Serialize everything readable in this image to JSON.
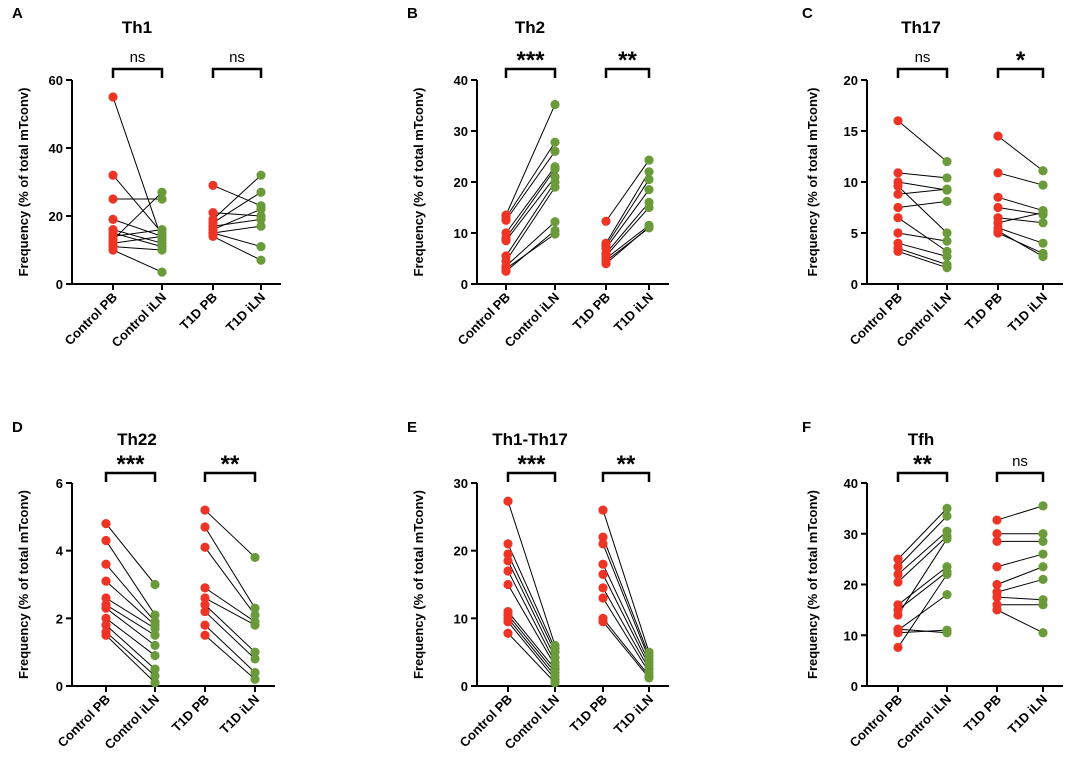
{
  "colors": {
    "pb": "#ee3424",
    "iln": "#6a9a3a",
    "axis": "#000000"
  },
  "chart_data": [
    {
      "type": "scatter",
      "panel": "A",
      "title": "Th1",
      "ylabel": "Frequency  (% of total mTconv)",
      "ylim": [
        0,
        60
      ],
      "yticks": [
        0,
        20,
        40,
        60
      ],
      "categories": [
        "Control PB",
        "Control iLN",
        "T1D PB",
        "T1D iLN"
      ],
      "significance": [
        "ns",
        "ns"
      ],
      "groups": [
        {
          "pairs": [
            [
              55,
              13
            ],
            [
              32,
              15
            ],
            [
              25,
              25
            ],
            [
              19,
              14
            ],
            [
              16,
              12
            ],
            [
              15,
              11
            ],
            [
              14,
              16
            ],
            [
              13,
              27
            ],
            [
              12,
              14
            ],
            [
              11,
              10
            ],
            [
              10,
              3.5
            ]
          ]
        },
        {
          "pairs": [
            [
              29,
              23
            ],
            [
              21,
              20
            ],
            [
              19,
              32
            ],
            [
              18,
              27
            ],
            [
              17,
              19
            ],
            [
              16,
              22
            ],
            [
              15,
              11
            ],
            [
              14,
              7
            ],
            [
              15,
              17
            ]
          ]
        }
      ]
    },
    {
      "type": "scatter",
      "panel": "B",
      "title": "Th2",
      "ylabel": "Frequency  (% of total mTconv)",
      "ylim": [
        0,
        40
      ],
      "yticks": [
        0,
        10,
        20,
        30,
        40
      ],
      "categories": [
        "Control PB",
        "Control iLN",
        "T1D PB",
        "T1D iLN"
      ],
      "significance": [
        "***",
        "**"
      ],
      "groups": [
        {
          "pairs": [
            [
              13.5,
              35.2
            ],
            [
              13,
              27.8
            ],
            [
              12.5,
              26
            ],
            [
              10,
              23
            ],
            [
              9,
              22.5
            ],
            [
              8.5,
              21
            ],
            [
              5.5,
              20
            ],
            [
              4.5,
              19
            ],
            [
              3.5,
              12.2
            ],
            [
              2.5,
              10.5
            ],
            [
              3,
              9.8
            ]
          ]
        },
        {
          "pairs": [
            [
              12.3,
              24.3
            ],
            [
              8,
              22
            ],
            [
              7.5,
              20.5
            ],
            [
              7,
              18.5
            ],
            [
              6,
              16
            ],
            [
              5.5,
              15
            ],
            [
              5,
              11.5
            ],
            [
              4.5,
              11
            ],
            [
              4,
              11.2
            ]
          ]
        }
      ]
    },
    {
      "type": "scatter",
      "panel": "C",
      "title": "Th17",
      "ylabel": "Frequency  (% of total mTconv)",
      "ylim": [
        0,
        20
      ],
      "yticks": [
        0,
        5,
        10,
        15,
        20
      ],
      "categories": [
        "Control PB",
        "Control iLN",
        "T1D PB",
        "T1D iLN"
      ],
      "significance": [
        "ns",
        "*"
      ],
      "groups": [
        {
          "pairs": [
            [
              16,
              12
            ],
            [
              10.9,
              10.4
            ],
            [
              10,
              9.2
            ],
            [
              9.6,
              5
            ],
            [
              8.8,
              9.3
            ],
            [
              7.5,
              8.1
            ],
            [
              6.5,
              3.2
            ],
            [
              5,
              4.2
            ],
            [
              4,
              2.7
            ],
            [
              3.5,
              1.9
            ],
            [
              3.2,
              1.6
            ]
          ]
        },
        {
          "pairs": [
            [
              14.5,
              11.1
            ],
            [
              10.9,
              9.7
            ],
            [
              8.5,
              7.2
            ],
            [
              7.5,
              6.8
            ],
            [
              6.5,
              6
            ],
            [
              6,
              7
            ],
            [
              5.5,
              4
            ],
            [
              5,
              3
            ],
            [
              5.2,
              2.7
            ]
          ]
        }
      ]
    },
    {
      "type": "scatter",
      "panel": "D",
      "title": "Th22",
      "ylabel": "Frequency  (% of total mTconv)",
      "ylim": [
        0,
        6
      ],
      "yticks": [
        0,
        2,
        4,
        6
      ],
      "categories": [
        "Control PB",
        "Control iLN",
        "T1D PB",
        "T1D iLN"
      ],
      "significance": [
        "***",
        "**"
      ],
      "groups": [
        {
          "pairs": [
            [
              4.8,
              3
            ],
            [
              4.3,
              2.1
            ],
            [
              3.6,
              1.9
            ],
            [
              3.1,
              1.8
            ],
            [
              2.6,
              1.7
            ],
            [
              2.4,
              1.5
            ],
            [
              2.3,
              1.2
            ],
            [
              2.0,
              0.9
            ],
            [
              1.8,
              0.5
            ],
            [
              1.6,
              0.3
            ],
            [
              1.5,
              0.1
            ]
          ]
        },
        {
          "pairs": [
            [
              5.2,
              3.8
            ],
            [
              4.7,
              2.3
            ],
            [
              4.1,
              2.1
            ],
            [
              2.9,
              1.9
            ],
            [
              2.6,
              1.8
            ],
            [
              2.4,
              1.0
            ],
            [
              2.2,
              0.8
            ],
            [
              1.8,
              0.4
            ],
            [
              1.5,
              0.2
            ]
          ]
        }
      ]
    },
    {
      "type": "scatter",
      "panel": "E",
      "title": "Th1-Th17",
      "ylabel": "Frequency  (% of total mTconv)",
      "ylim": [
        0,
        30
      ],
      "yticks": [
        0,
        10,
        20,
        30
      ],
      "categories": [
        "Control PB",
        "Control iLN",
        "T1D PB",
        "T1D iLN"
      ],
      "significance": [
        "***",
        "**"
      ],
      "groups": [
        {
          "pairs": [
            [
              27.3,
              6
            ],
            [
              21,
              5.5
            ],
            [
              19.5,
              5
            ],
            [
              18.5,
              4.2
            ],
            [
              17,
              3.5
            ],
            [
              15,
              3
            ],
            [
              11,
              2.5
            ],
            [
              10.5,
              2
            ],
            [
              10,
              1.5
            ],
            [
              9.5,
              1
            ],
            [
              7.8,
              0.5
            ]
          ]
        },
        {
          "pairs": [
            [
              26,
              5
            ],
            [
              22,
              4.5
            ],
            [
              21,
              4
            ],
            [
              18,
              3.5
            ],
            [
              16.5,
              3
            ],
            [
              14.5,
              2.5
            ],
            [
              13,
              2
            ],
            [
              10,
              1.5
            ],
            [
              9.5,
              1.2
            ]
          ]
        }
      ]
    },
    {
      "type": "scatter",
      "panel": "F",
      "title": "Tfh",
      "ylabel": "Frequency  (% of total mTconv)",
      "ylim": [
        0,
        40
      ],
      "yticks": [
        0,
        10,
        20,
        30,
        40
      ],
      "categories": [
        "Control PB",
        "Control iLN",
        "T1D PB",
        "T1D iLN"
      ],
      "significance": [
        "**",
        "ns"
      ],
      "groups": [
        {
          "pairs": [
            [
              25,
              35
            ],
            [
              23.5,
              33.5
            ],
            [
              22,
              30.5
            ],
            [
              20.5,
              29.5
            ],
            [
              16,
              23.5
            ],
            [
              15,
              22.5
            ],
            [
              14,
              29
            ],
            [
              11,
              18
            ],
            [
              10.5,
              11
            ],
            [
              11.2,
              10.5
            ],
            [
              7.6,
              22
            ]
          ]
        },
        {
          "pairs": [
            [
              32.7,
              35.5
            ],
            [
              30,
              30
            ],
            [
              28.5,
              28.5
            ],
            [
              23.5,
              26
            ],
            [
              20,
              23.5
            ],
            [
              18.5,
              21
            ],
            [
              17.5,
              17
            ],
            [
              16,
              16
            ],
            [
              15,
              10.5
            ]
          ]
        }
      ]
    }
  ]
}
